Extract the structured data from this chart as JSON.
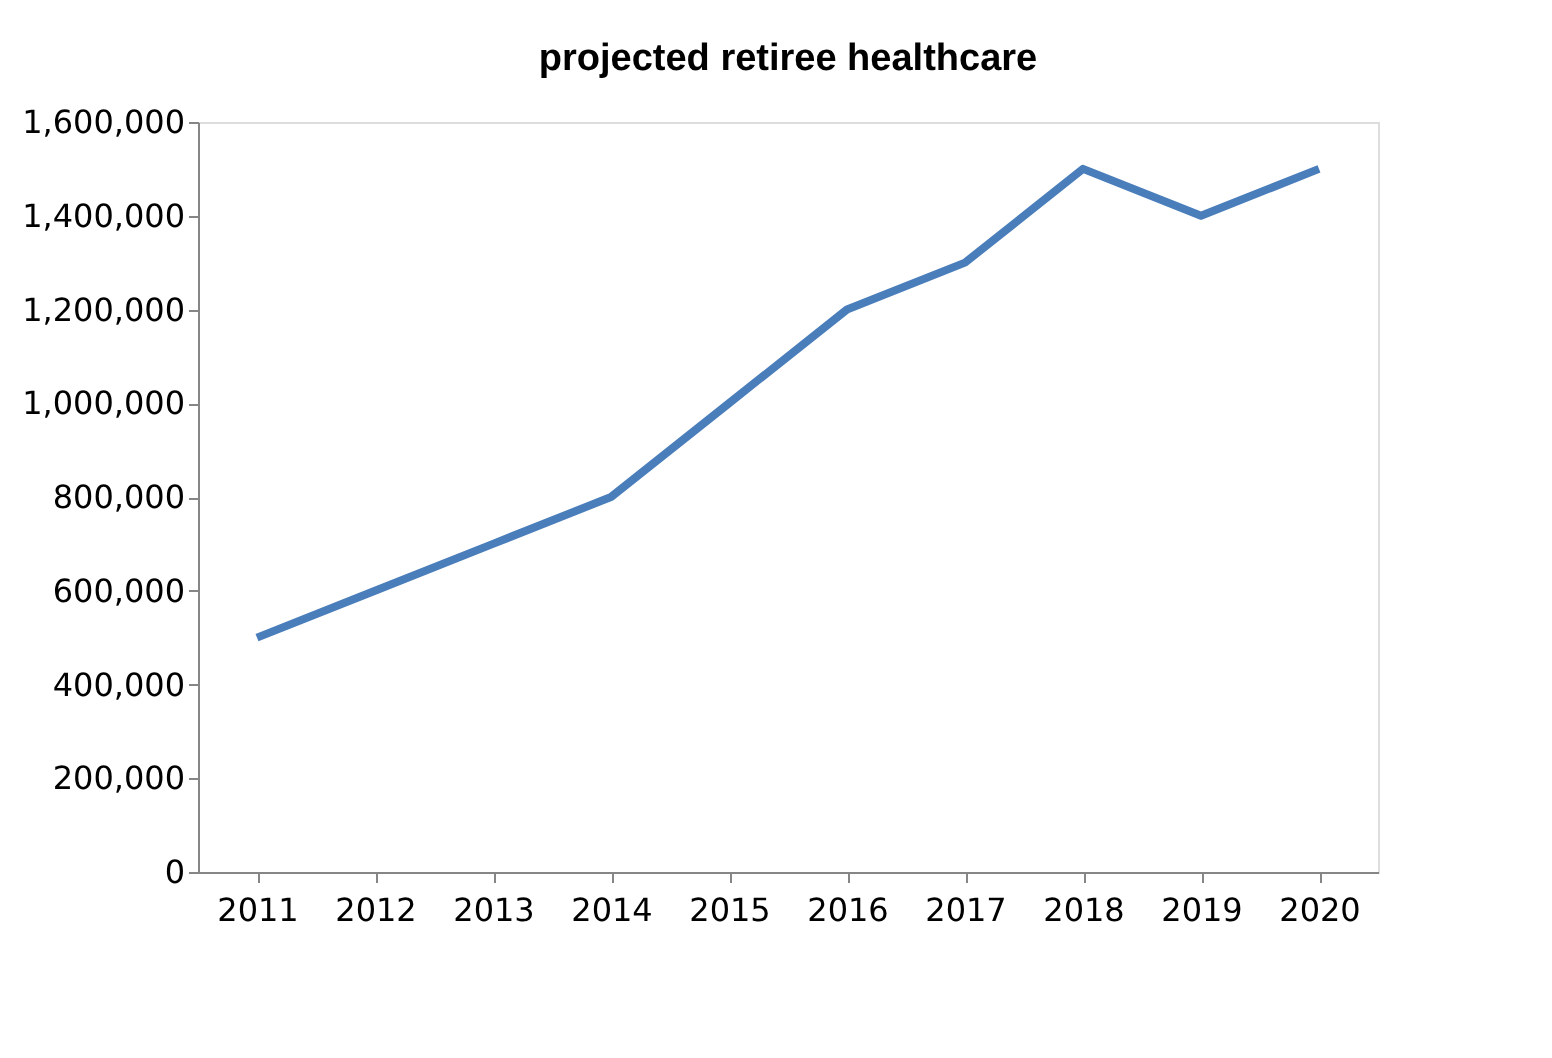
{
  "chart_data": {
    "type": "line",
    "title": "projected retiree healthcare",
    "categories": [
      "2011",
      "2012",
      "2013",
      "2014",
      "2015",
      "2016",
      "2017",
      "2018",
      "2019",
      "2020"
    ],
    "series": [
      {
        "color": "#4a7ebb",
        "values": [
          500000,
          600000,
          700000,
          800000,
          1000000,
          1200000,
          1300000,
          1500000,
          1400000,
          1500000
        ]
      }
    ],
    "ylim": [
      0,
      1600000
    ],
    "yticks": [
      0,
      {
        "value": 200000,
        "label": "200,000"
      },
      {
        "value": 400000,
        "label": "400,000"
      },
      {
        "value": 600000,
        "label": "600,000"
      },
      {
        "value": 800000,
        "label": "800,000"
      },
      {
        "value": 1000000,
        "label": "1,000,000"
      },
      {
        "value": 1200000,
        "label": "1,200,000"
      },
      {
        "value": 1400000,
        "label": "1,400,000"
      },
      {
        "value": 1600000,
        "label": "1,600,000"
      }
    ],
    "grid": false,
    "marker": "none",
    "line_style": "solid"
  }
}
